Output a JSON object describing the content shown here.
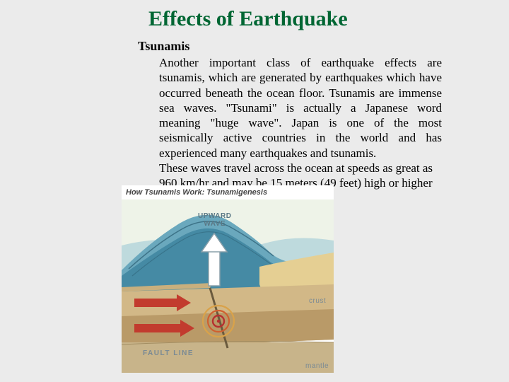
{
  "title": "Effects of Earthquake",
  "subheading": "Tsunamis",
  "paragraph1": "Another important class of earthquake effects are tsunamis, which are generated by earthquakes which have occurred beneath the ocean floor. Tsunamis are immense sea waves. \"Tsunami\" is actually a Japanese word meaning \"huge wave\". Japan is one of the most seismically active countries in the world and has experienced many earthquakes and tsunamis.",
  "paragraph2": "These waves travel across the ocean at speeds as great as 960 km/hr and may be 15 meters (49 feet) high or higher by the time they reach the shore.",
  "diagram": {
    "title_text": "How Tsunamis Work: Tsunamigenesis",
    "upward_label": "UPWARD\nWAVE",
    "fault_label": "FAULT LINE",
    "crust_label": "crust",
    "mantle_label": "mantle",
    "colors": {
      "bg": "#ffffff",
      "sky": "#eef3e8",
      "water_light": "#9fc9d6",
      "water_mid": "#6aa8bd",
      "water_dark": "#317a97",
      "wave_outline": "#2b5d72",
      "sand": "#e5cf93",
      "crust_top": "#d2b887",
      "crust_bottom": "#b99a68",
      "mantle": "#c8b48a",
      "fault_line": "#6a5a3d",
      "arrow_red": "#c23b2e",
      "arrow_white": "#ffffff",
      "arrow_outline": "#8aa0aa",
      "ring_outer": "#d9a24a",
      "ring_mid": "#d0602f",
      "ring_inner": "#b72f2f",
      "label_color": "#7a8a94"
    }
  }
}
